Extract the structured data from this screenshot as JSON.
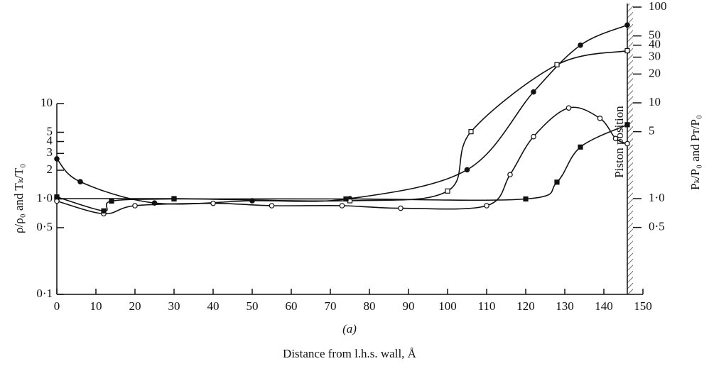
{
  "chart_data": {
    "type": "line",
    "annotation": "(a)",
    "piston_label": "Piston position",
    "piston_x": 146,
    "x_label": "Distance from l.h.s. wall, Å",
    "y_label": "ρ/ρ₀ and Tₖ/T₀",
    "y2_label": "Pₖ/P₀ and Pᴛ/P₀",
    "log_y": true,
    "xlim": [
      0,
      150
    ],
    "xticks": [
      0,
      10,
      20,
      30,
      40,
      50,
      60,
      70,
      80,
      90,
      100,
      110,
      120,
      130,
      140,
      150
    ],
    "ylim": [
      0.1,
      10
    ],
    "yticks": [
      {
        "value": 0.1,
        "label": "0·1"
      },
      {
        "value": 0.5,
        "label": "0·5"
      },
      {
        "value": 1,
        "label": "1·0"
      },
      2,
      3,
      4,
      5,
      10
    ],
    "y2lim": [
      0.1,
      100
    ],
    "y2ticks": [
      {
        "value": 0.5,
        "label": "0·5"
      },
      {
        "value": 1,
        "label": "1·0"
      },
      5,
      10,
      20,
      30,
      40,
      50,
      100
    ],
    "series": [
      {
        "marker": "filled-circle",
        "axis": "y2",
        "color": "#111",
        "x": [
          0,
          6,
          25,
          50,
          75,
          105,
          122,
          134,
          146
        ],
        "y": [
          2.6,
          1.5,
          0.9,
          0.95,
          1.0,
          2.0,
          13,
          40,
          65
        ]
      },
      {
        "marker": "open-square",
        "axis": "y2",
        "color": "#111",
        "x": [
          0,
          30,
          75,
          100,
          106,
          128,
          146
        ],
        "y": [
          1.0,
          1.0,
          0.95,
          1.2,
          5,
          25,
          35
        ]
      },
      {
        "marker": "open-circle",
        "axis": "y",
        "color": "#111",
        "x": [
          0,
          12,
          20,
          40,
          55,
          73,
          88,
          110,
          116,
          122,
          131,
          139,
          143,
          146
        ],
        "y": [
          0.95,
          0.7,
          0.85,
          0.9,
          0.85,
          0.85,
          0.8,
          0.85,
          1.8,
          4.5,
          9,
          7,
          4.3,
          3.8
        ]
      },
      {
        "marker": "filled-square",
        "axis": "y",
        "color": "#111",
        "x": [
          0,
          12,
          14,
          30,
          74,
          120,
          128,
          134,
          146
        ],
        "y": [
          1.05,
          0.75,
          0.95,
          1.0,
          1.0,
          1.0,
          1.5,
          3.5,
          6
        ]
      }
    ]
  }
}
